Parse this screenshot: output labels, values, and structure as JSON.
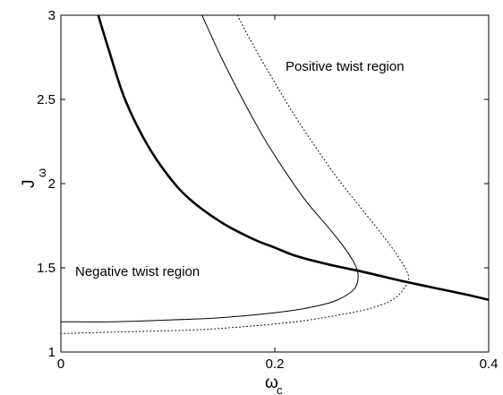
{
  "chart_data": {
    "type": "line",
    "title": "",
    "xlabel": {
      "base": "ω",
      "sub": "c"
    },
    "ylabel": {
      "base": "J",
      "sub": "ω"
    },
    "xlim": [
      0,
      0.4
    ],
    "ylim": [
      1,
      3
    ],
    "xticks": [
      0,
      0.2,
      0.4
    ],
    "xtick_labels": [
      "0",
      "0.2",
      "0.4"
    ],
    "yticks": [
      1,
      1.5,
      2,
      2.5,
      3
    ],
    "ytick_labels": [
      "1",
      "1.5",
      "2",
      "2.5",
      "3"
    ],
    "grid": false,
    "legend": "none",
    "annotations": [
      {
        "id": "positive",
        "text": "Positive twist region",
        "x": 0.27,
        "y": 2.79
      },
      {
        "id": "negative",
        "text": "Negative twist region",
        "x": 0.024,
        "y": 1.46
      }
    ],
    "series": [
      {
        "id": "thick",
        "style": "solid",
        "width": 2.6,
        "color": "#000000",
        "x": [
          0.035,
          0.045,
          0.06,
          0.08,
          0.1,
          0.12,
          0.15,
          0.18,
          0.2,
          0.22,
          0.25,
          0.28,
          0.3,
          0.32,
          0.35,
          0.38,
          0.4
        ],
        "y": [
          3.0,
          2.79,
          2.5,
          2.24,
          2.05,
          1.91,
          1.77,
          1.67,
          1.62,
          1.57,
          1.52,
          1.48,
          1.45,
          1.42,
          1.38,
          1.34,
          1.31
        ]
      },
      {
        "id": "solid-thin",
        "style": "solid",
        "width": 1,
        "color": "#000000",
        "x": [
          0.132,
          0.15,
          0.17,
          0.19,
          0.21,
          0.23,
          0.25,
          0.265,
          0.275,
          0.278,
          0.275,
          0.265,
          0.25,
          0.22,
          0.18,
          0.14,
          0.1,
          0.05,
          0.0
        ],
        "y": [
          3.0,
          2.75,
          2.5,
          2.27,
          2.07,
          1.89,
          1.74,
          1.62,
          1.52,
          1.45,
          1.38,
          1.33,
          1.29,
          1.25,
          1.22,
          1.2,
          1.19,
          1.18,
          1.18
        ]
      },
      {
        "id": "dotted",
        "style": "dotted",
        "width": 1,
        "color": "#000000",
        "x": [
          0.165,
          0.18,
          0.2,
          0.22,
          0.24,
          0.26,
          0.28,
          0.3,
          0.315,
          0.325,
          0.32,
          0.31,
          0.29,
          0.26,
          0.22,
          0.17,
          0.12,
          0.06,
          0.0
        ],
        "y": [
          3.0,
          2.82,
          2.6,
          2.39,
          2.2,
          2.02,
          1.86,
          1.7,
          1.57,
          1.45,
          1.37,
          1.31,
          1.26,
          1.22,
          1.18,
          1.15,
          1.13,
          1.12,
          1.11
        ]
      }
    ]
  }
}
